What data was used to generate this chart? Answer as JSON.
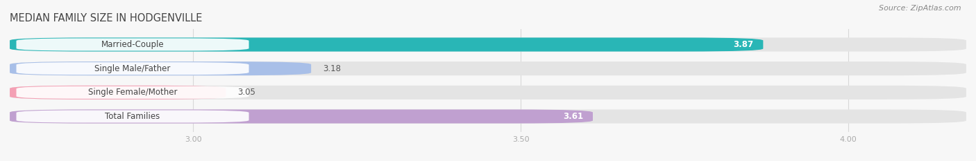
{
  "title": "MEDIAN FAMILY SIZE IN HODGENVILLE",
  "source": "Source: ZipAtlas.com",
  "categories": [
    "Married-Couple",
    "Single Male/Father",
    "Single Female/Mother",
    "Total Families"
  ],
  "values": [
    3.87,
    3.18,
    3.05,
    3.61
  ],
  "bar_colors": [
    "#29b6b6",
    "#a8bfe8",
    "#f4a0b4",
    "#c0a0d0"
  ],
  "xlim_left": 2.72,
  "xlim_right": 4.18,
  "xstart": 2.72,
  "xticks": [
    3.0,
    3.5,
    4.0
  ],
  "bar_height": 0.58,
  "bar_gap": 0.42,
  "title_fontsize": 10.5,
  "source_fontsize": 8,
  "label_fontsize": 8.5,
  "value_fontsize": 8.5,
  "tick_fontsize": 8,
  "background_color": "#f7f7f7",
  "bar_bg_color": "#e4e4e4",
  "title_color": "#444444",
  "source_color": "#888888",
  "tick_color": "#aaaaaa",
  "grid_color": "#d8d8d8",
  "value_color_inside": "#ffffff",
  "value_color_outside": "#555555",
  "label_text_color": "#444444"
}
